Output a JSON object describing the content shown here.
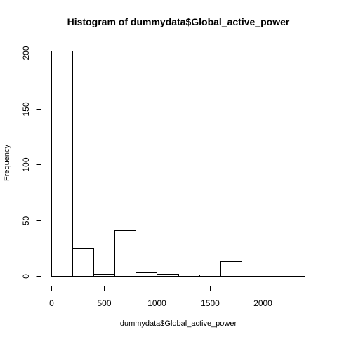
{
  "chart_data": {
    "type": "bar",
    "title": "Histogram of dummydata$Global_active_power",
    "xlabel": "dummydata$Global_active_power",
    "ylabel": "Frequency",
    "bins": [
      {
        "start": 0,
        "end": 200,
        "count": 202
      },
      {
        "start": 200,
        "end": 400,
        "count": 25
      },
      {
        "start": 400,
        "end": 600,
        "count": 2
      },
      {
        "start": 600,
        "end": 800,
        "count": 41
      },
      {
        "start": 800,
        "end": 1000,
        "count": 3
      },
      {
        "start": 1000,
        "end": 1200,
        "count": 2
      },
      {
        "start": 1200,
        "end": 1400,
        "count": 1
      },
      {
        "start": 1400,
        "end": 1600,
        "count": 1
      },
      {
        "start": 1600,
        "end": 1800,
        "count": 13
      },
      {
        "start": 1800,
        "end": 2000,
        "count": 10
      },
      {
        "start": 2000,
        "end": 2200,
        "count": 0
      },
      {
        "start": 2200,
        "end": 2400,
        "count": 1
      }
    ],
    "xlim": [
      0,
      2400
    ],
    "ylim": [
      0,
      202
    ],
    "x_ticks": [
      0,
      500,
      1000,
      1500,
      2000
    ],
    "y_ticks": [
      0,
      50,
      100,
      150,
      200
    ],
    "grid": false,
    "legend": "none"
  }
}
